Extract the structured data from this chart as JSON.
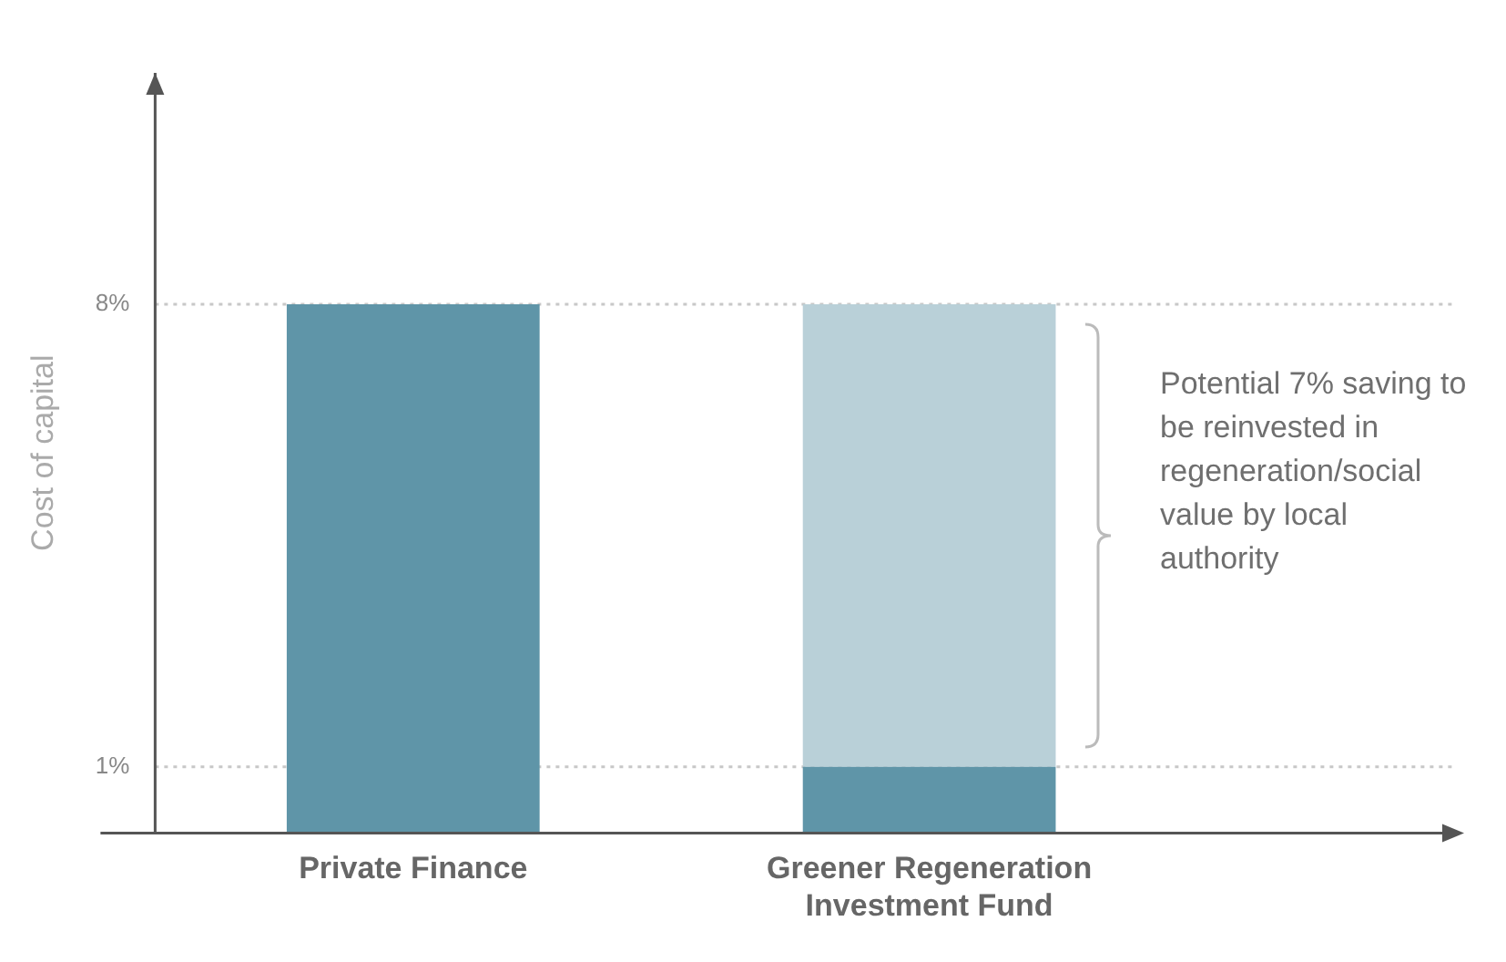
{
  "chart_data": {
    "type": "bar",
    "stacked": true,
    "categories": [
      "Private Finance",
      "Greener Regeneration Investment Fund"
    ],
    "series": [
      {
        "color": "#5f95a8",
        "values": [
          8,
          1
        ]
      },
      {
        "color": "#b9d0d8",
        "values": [
          null,
          7
        ]
      }
    ],
    "ylabel": "Cost of capital",
    "ylim": [
      0,
      11.5
    ],
    "yticks": [
      {
        "value": 1,
        "label": "1%"
      },
      {
        "value": 8,
        "label": "8%"
      }
    ],
    "grid": "y",
    "annotations": [
      "Potential 7% saving to be reinvested in regeneration/social value by local authority"
    ]
  }
}
